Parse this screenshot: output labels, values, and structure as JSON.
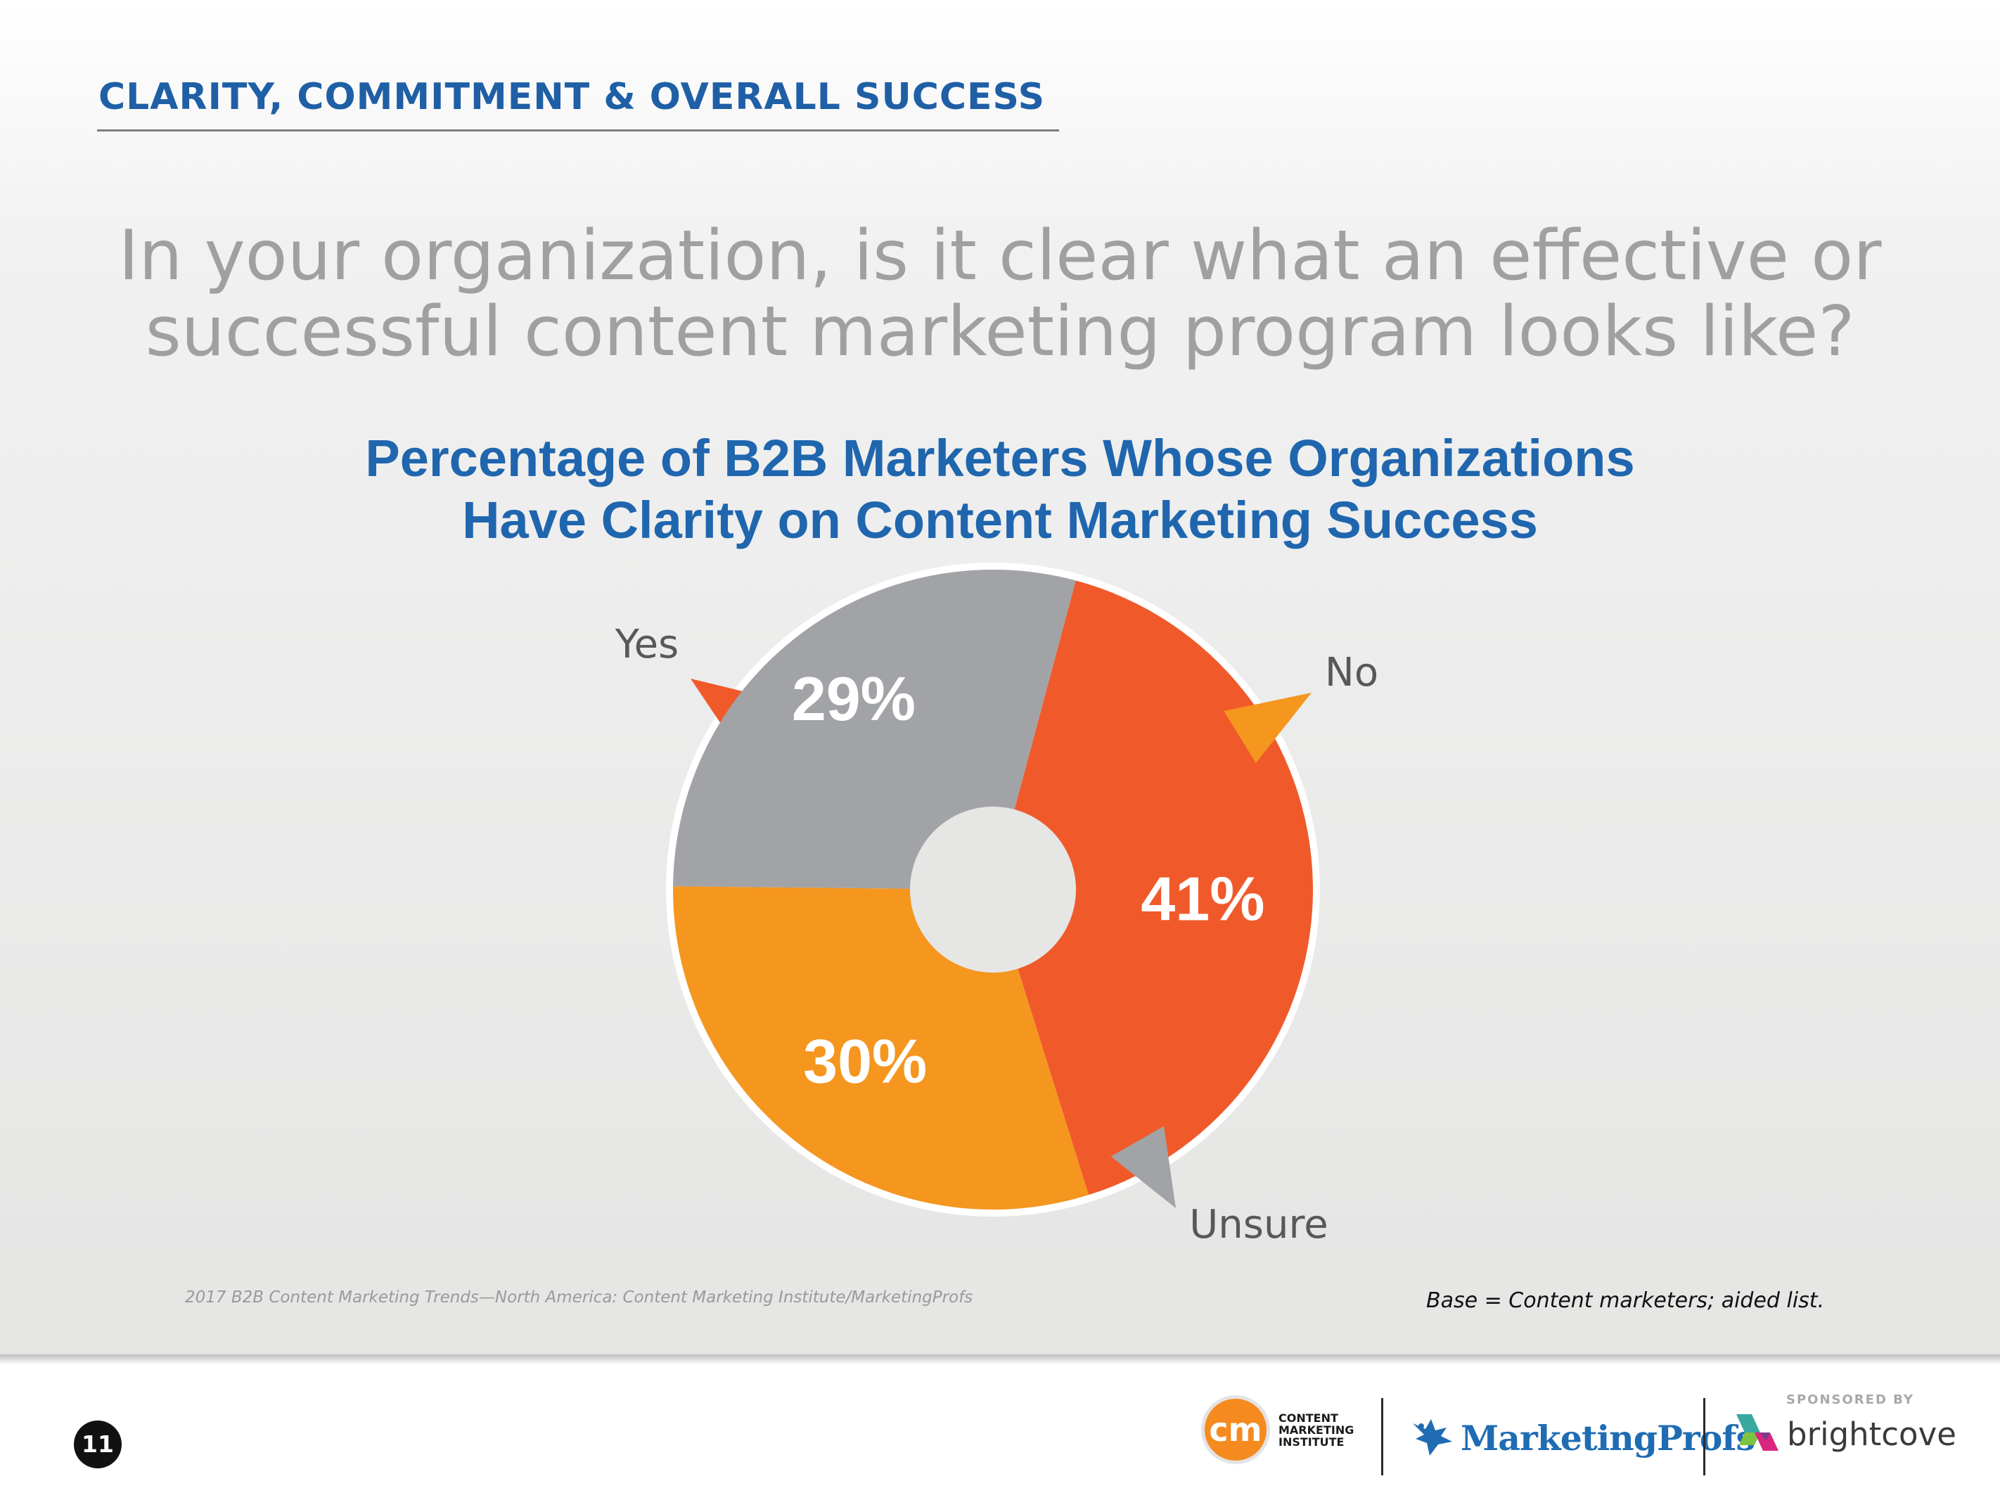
{
  "header": {
    "section_title": "CLARITY, COMMITMENT & OVERALL SUCCESS",
    "question_line1": "In your organization, is it clear what an effective or",
    "question_line2": "successful content marketing program looks like?"
  },
  "chart_data": {
    "type": "pie",
    "title_line1": "Percentage of B2B Marketers Whose Organizations",
    "title_line2": "Have Clarity on Content Marketing Success",
    "categories": [
      "Yes",
      "No",
      "Unsure"
    ],
    "values": [
      41,
      30,
      29
    ],
    "value_labels": [
      "41%",
      "30%",
      "29%"
    ],
    "colors": [
      "#f05a2b",
      "#f5961f",
      "#a2a3a6"
    ]
  },
  "footer": {
    "source": "2017 B2B Content Marketing Trends—North America: Content Marketing Institute/MarketingProfs",
    "base_note": "Base = Content marketers; aided list.",
    "page_number": "11",
    "cmi_mark": "cm",
    "cmi_line1": "CONTENT",
    "cmi_line2": "MARKETING",
    "cmi_line3": "INSTITUTE",
    "marketingprofs": "MarketingProfs",
    "sponsored_by": "SPONSORED BY",
    "brightcove": "brightcove"
  },
  "icons": {
    "cmi": "cmi-logo-icon",
    "marketingprofs": "marketingprofs-bird-icon",
    "brightcove": "brightcove-mark-icon"
  }
}
